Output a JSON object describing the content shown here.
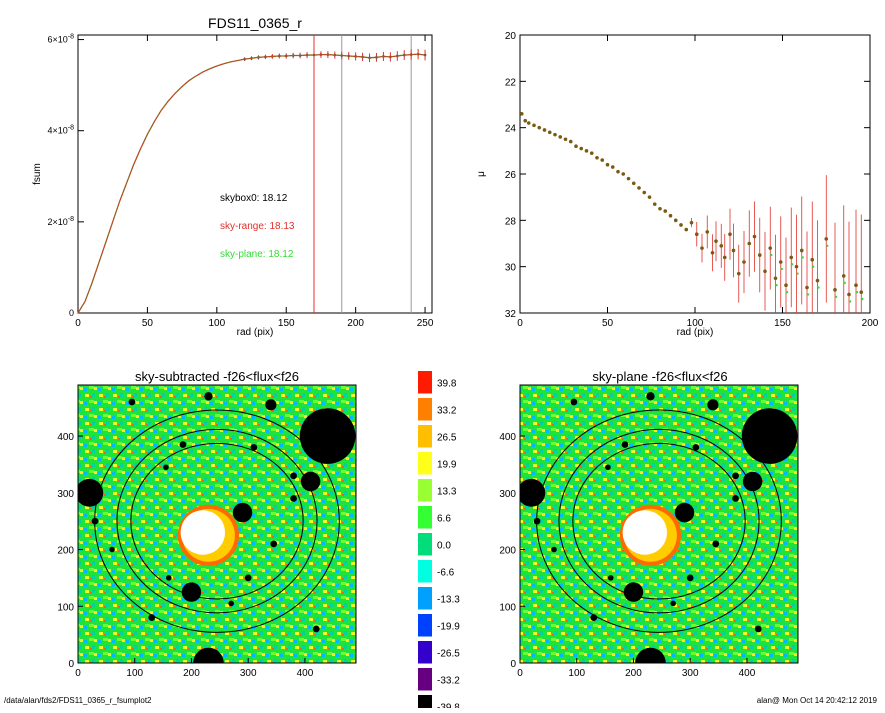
{
  "footer": {
    "path": "/data/alan/fds2/FDS11_0365_r_fsumplot2",
    "stamp": "alan@  Mon Oct 14 20:42:12 2019"
  },
  "colors": {
    "black": "#000000",
    "red": "#e0302a",
    "green": "#33dd33",
    "olive": "#8a6d1f",
    "point": "#7a5a12",
    "grey": "#999999"
  },
  "chart_data": [
    {
      "type": "line",
      "title": "FDS11_0365_r",
      "xlabel": "rad (pix)",
      "ylabel": "fsum",
      "xlim": [
        0,
        255
      ],
      "ylim": [
        0,
        6.1e-08
      ],
      "xticks": [
        "0",
        "50",
        "100",
        "150",
        "200",
        "250"
      ],
      "yticks": [
        {
          "value": 0,
          "mant": "0",
          "exp": ""
        },
        {
          "value": 2e-08,
          "mant": "2×10",
          "exp": "-8"
        },
        {
          "value": 4e-08,
          "mant": "4×10",
          "exp": "-8"
        },
        {
          "value": 6e-08,
          "mant": "6×10",
          "exp": "-8"
        }
      ],
      "x": [
        0,
        5,
        10,
        15,
        20,
        25,
        30,
        35,
        40,
        45,
        50,
        55,
        60,
        65,
        70,
        75,
        80,
        85,
        90,
        95,
        100,
        105,
        110,
        115,
        120,
        125,
        130,
        135,
        140,
        145,
        150,
        155,
        160,
        165,
        170,
        175,
        180,
        185,
        190,
        195,
        200,
        205,
        210,
        215,
        220,
        225,
        230,
        235,
        240,
        245,
        250
      ],
      "y": [
        0,
        2.5e-09,
        6.5e-09,
        1.1e-08,
        1.55e-08,
        2e-08,
        2.45e-08,
        2.85e-08,
        3.25e-08,
        3.6e-08,
        3.92e-08,
        4.2e-08,
        4.45e-08,
        4.65e-08,
        4.82e-08,
        4.97e-08,
        5.1e-08,
        5.2e-08,
        5.29e-08,
        5.36e-08,
        5.42e-08,
        5.47e-08,
        5.51e-08,
        5.54e-08,
        5.57e-08,
        5.59e-08,
        5.61e-08,
        5.62e-08,
        5.63e-08,
        5.64e-08,
        5.64e-08,
        5.65e-08,
        5.65e-08,
        5.66e-08,
        5.66e-08,
        5.67e-08,
        5.67e-08,
        5.66e-08,
        5.65e-08,
        5.64e-08,
        5.63e-08,
        5.62e-08,
        5.6e-08,
        5.61e-08,
        5.63e-08,
        5.62e-08,
        5.64e-08,
        5.66e-08,
        5.67e-08,
        5.68e-08,
        5.66e-08
      ],
      "vlines": [
        {
          "x": 170,
          "color": "#e0302a"
        },
        {
          "x": 190,
          "color": "#999999"
        },
        {
          "x": 240,
          "color": "#999999"
        }
      ],
      "annotations": [
        {
          "text": "skybox0: 18.12",
          "color": "#000000"
        },
        {
          "text": "sky-range: 18.13",
          "color": "#e0302a"
        },
        {
          "text": "sky-plane: 18.12",
          "color": "#33dd33"
        }
      ]
    },
    {
      "type": "scatter",
      "title": "",
      "xlabel": "rad (pix)",
      "ylabel": "μ",
      "xlim": [
        0,
        200
      ],
      "ylim": [
        32,
        20
      ],
      "xticks": [
        "0",
        "50",
        "100",
        "150",
        "200"
      ],
      "yticks": [
        "20",
        "22",
        "24",
        "26",
        "28",
        "30",
        "32"
      ],
      "x": [
        1,
        3,
        5,
        8,
        11,
        14,
        17,
        20,
        23,
        26,
        29,
        32,
        35,
        38,
        41,
        44,
        47,
        50,
        53,
        56,
        59,
        62,
        65,
        68,
        71,
        74,
        77,
        80,
        83,
        86,
        89,
        92,
        95,
        98,
        101,
        104,
        107,
        110,
        112,
        115,
        117,
        120,
        122,
        125,
        128,
        131,
        134,
        137,
        140,
        143,
        146,
        149,
        152,
        155,
        158,
        161,
        164,
        167,
        170,
        175,
        180,
        185,
        188,
        192,
        195
      ],
      "y": [
        23.4,
        23.7,
        23.8,
        23.9,
        24.0,
        24.1,
        24.2,
        24.3,
        24.4,
        24.5,
        24.6,
        24.8,
        24.9,
        25.0,
        25.1,
        25.3,
        25.4,
        25.6,
        25.7,
        25.9,
        26.0,
        26.2,
        26.4,
        26.6,
        26.8,
        27.0,
        27.3,
        27.5,
        27.6,
        27.8,
        28.0,
        28.2,
        28.4,
        28.1,
        28.6,
        29.2,
        28.5,
        29.4,
        28.9,
        29.1,
        29.6,
        28.6,
        29.3,
        30.3,
        29.8,
        29.0,
        28.7,
        29.5,
        30.2,
        29.2,
        30.5,
        29.8,
        30.8,
        29.6,
        30.0,
        29.3,
        30.9,
        29.7,
        30.6,
        28.8,
        31.0,
        30.4,
        31.2,
        30.8,
        31.1
      ]
    },
    {
      "type": "heatmap",
      "title": "sky-subtracted -f26<flux<f26",
      "xlim": [
        0,
        490
      ],
      "ylim": [
        0,
        490
      ],
      "xticks": [
        "0",
        "100",
        "200",
        "300",
        "400"
      ],
      "yticks": [
        "0",
        "100",
        "200",
        "300",
        "400"
      ]
    },
    {
      "type": "heatmap",
      "title": "sky-plane -f26<flux<f26",
      "xlim": [
        0,
        490
      ],
      "ylim": [
        0,
        490
      ],
      "xticks": [
        "0",
        "100",
        "200",
        "300",
        "400"
      ],
      "yticks": [
        "0",
        "100",
        "200",
        "300",
        "400"
      ]
    }
  ],
  "colorbar": [
    {
      "label": "39.8",
      "color": "#ff1a00"
    },
    {
      "label": "33.2",
      "color": "#ff7f00"
    },
    {
      "label": "26.5",
      "color": "#ffbf00"
    },
    {
      "label": "19.9",
      "color": "#ffff1a"
    },
    {
      "label": "13.3",
      "color": "#99ff33"
    },
    {
      "label": "6.6",
      "color": "#33ff33"
    },
    {
      "label": "0.0",
      "color": "#00dd7a"
    },
    {
      "label": "-6.6",
      "color": "#00ffe0"
    },
    {
      "label": "-13.3",
      "color": "#00a0ff"
    },
    {
      "label": "-19.9",
      "color": "#0040ff"
    },
    {
      "label": "-26.5",
      "color": "#3300cc"
    },
    {
      "label": "-33.2",
      "color": "#660080"
    },
    {
      "label": "-39.8",
      "color": "#000000"
    }
  ]
}
